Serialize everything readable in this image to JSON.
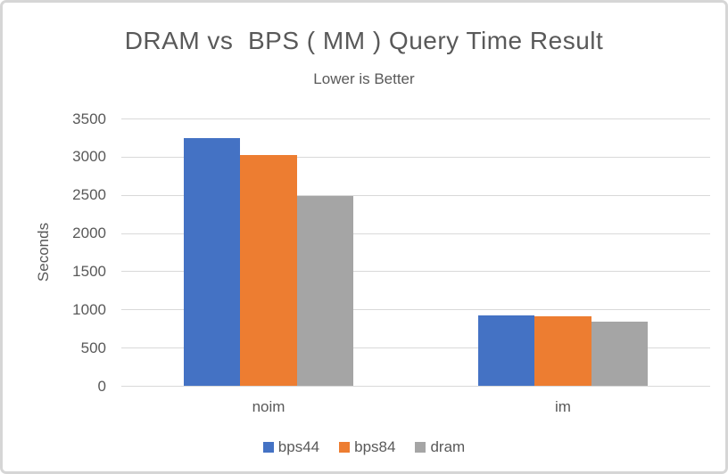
{
  "chart_data": {
    "type": "bar",
    "title": "DRAM vs  BPS ( MM ) Query Time Result",
    "subtitle": "Lower is Better",
    "ylabel": "Seconds",
    "xlabel": "",
    "categories": [
      "noim",
      "im"
    ],
    "series": [
      {
        "name": "bps44",
        "color": "#4472C4",
        "values": [
          3240,
          920
        ]
      },
      {
        "name": "bps84",
        "color": "#ED7D31",
        "values": [
          3020,
          910
        ]
      },
      {
        "name": "dram",
        "color": "#A5A5A5",
        "values": [
          2490,
          840
        ]
      }
    ],
    "ylim": [
      0,
      3500
    ],
    "ytick_step": 500,
    "yticks": [
      0,
      500,
      1000,
      1500,
      2000,
      2500,
      3000,
      3500
    ],
    "grid": true,
    "legend_position": "bottom"
  },
  "colors": {
    "text": "#595959",
    "gridline": "#D9D9D9",
    "frame_border": "#D6D6D6",
    "background": "#FFFFFF"
  }
}
